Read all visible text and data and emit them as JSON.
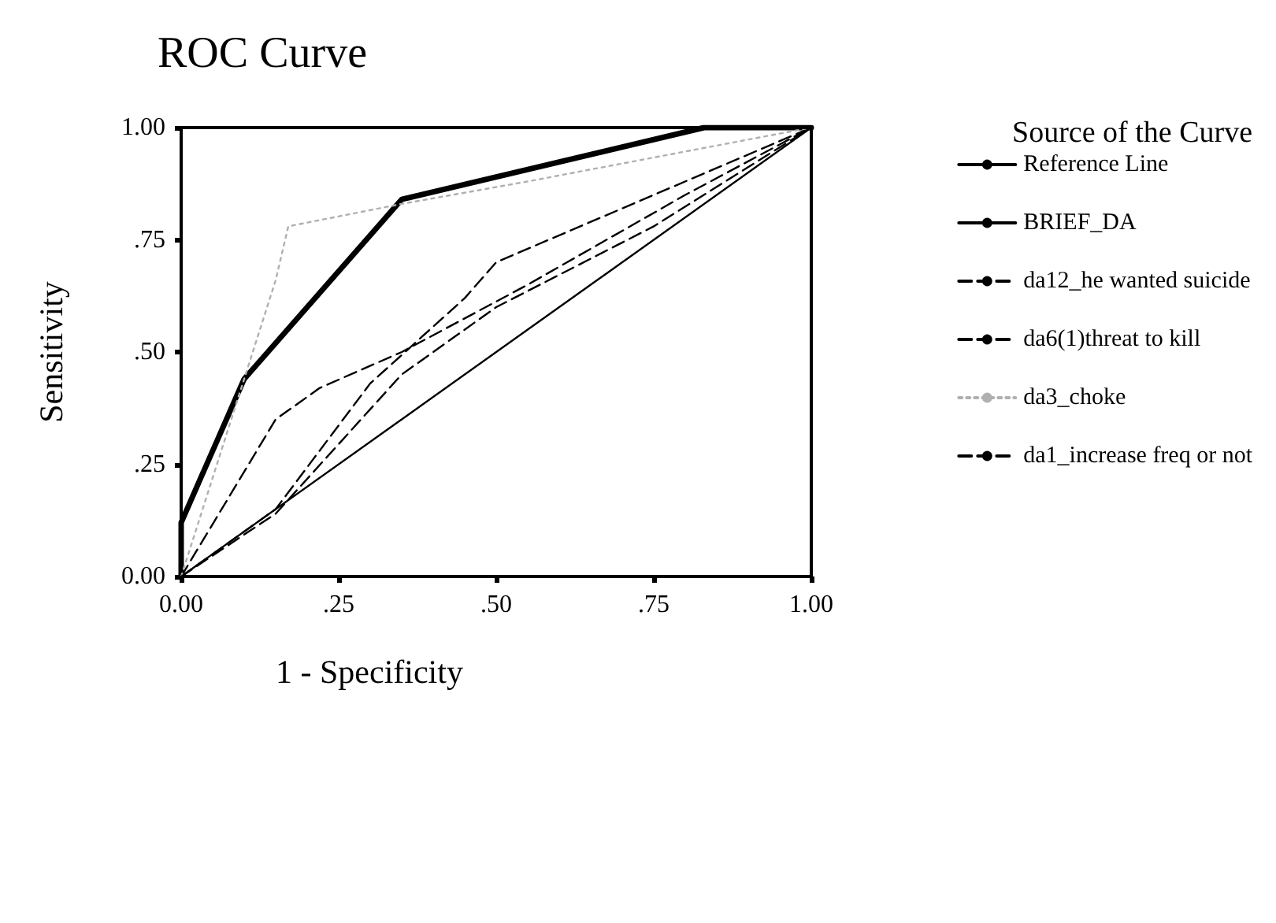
{
  "chart_data": {
    "type": "line",
    "title": "ROC Curve",
    "xlabel": "1 - Specificity",
    "ylabel": "Sensitivity",
    "legend_title": "Source of the Curve",
    "legend": "right",
    "grid": false,
    "marker": "none",
    "xlim": [
      0,
      1
    ],
    "ylim": [
      0,
      1
    ],
    "xticks": [
      {
        "value": 0,
        "label": "0.00"
      },
      {
        "value": 0.25,
        "label": ".25"
      },
      {
        "value": 0.5,
        "label": ".50"
      },
      {
        "value": 0.75,
        "label": ".75"
      },
      {
        "value": 1,
        "label": "1.00"
      }
    ],
    "yticks": [
      {
        "value": 0,
        "label": "0.00"
      },
      {
        "value": 0.25,
        "label": ".25"
      },
      {
        "value": 0.5,
        "label": ".50"
      },
      {
        "value": 0.75,
        "label": ".75"
      },
      {
        "value": 1,
        "label": "1.00"
      }
    ],
    "series": [
      {
        "name": "Reference Line",
        "color": "#000000",
        "line_style": "solid",
        "x": [
          0,
          1
        ],
        "values": [
          0,
          1
        ]
      },
      {
        "name": "BRIEF_DA",
        "color": "#000000",
        "line_style": "solid",
        "x": [
          0,
          0,
          0.1,
          0.35,
          0.83,
          1
        ],
        "values": [
          0,
          0.12,
          0.44,
          0.84,
          1,
          1
        ]
      },
      {
        "name": "da12_he wanted suicide",
        "color": "#000000",
        "line_style": "dashed",
        "x": [
          0,
          0.15,
          0.22,
          0.35,
          0.55,
          0.8,
          1
        ],
        "values": [
          0,
          0.35,
          0.42,
          0.5,
          0.65,
          0.85,
          1
        ]
      },
      {
        "name": "da6(1)threat to kill",
        "color": "#000000",
        "line_style": "dashed",
        "x": [
          0,
          0.15,
          0.3,
          0.45,
          0.5,
          0.75,
          1
        ],
        "values": [
          0,
          0.15,
          0.43,
          0.62,
          0.7,
          0.85,
          1
        ]
      },
      {
        "name": "da3_choke",
        "color": "#b0b0b0",
        "line_style": "dotted",
        "x": [
          0,
          0.1,
          0.15,
          0.17,
          0.35,
          0.55,
          1
        ],
        "values": [
          0,
          0.44,
          0.66,
          0.78,
          0.83,
          0.88,
          1
        ]
      },
      {
        "name": "da1_increase freq or not",
        "color": "#000000",
        "line_style": "dashed",
        "x": [
          0,
          0.15,
          0.35,
          0.5,
          0.75,
          1
        ],
        "values": [
          0,
          0.14,
          0.45,
          0.6,
          0.78,
          1
        ]
      }
    ]
  }
}
